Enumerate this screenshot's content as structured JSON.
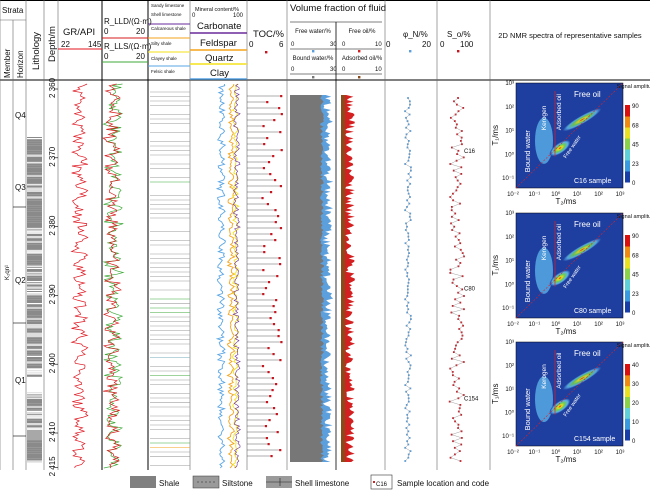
{
  "headers": {
    "strats": "Strata",
    "member": "Member",
    "horizon": "Horizon",
    "lithology": "Lithology",
    "depth": "Depth/m",
    "gr": {
      "label": "GR/API",
      "min": "22",
      "max": "145"
    },
    "rlld": {
      "label": "R_LLD/(Ω·m)",
      "min": "0",
      "max": "20"
    },
    "rlls": {
      "label": "R_LLS/(Ω·m)",
      "min": "0",
      "max": "20"
    },
    "lith_types": [
      "Sandy limestone",
      "Shell limestone",
      "Calcareous shale",
      "Silty shale",
      "Clayey shale",
      "Felsic shale"
    ],
    "mineral": {
      "label": "Mineral content/%",
      "min": "0",
      "max": "100",
      "items": [
        "Carbonate",
        "Feldspar",
        "Quartz",
        "Clay"
      ]
    },
    "toc": {
      "label": "TOC/%",
      "min": "0",
      "max": "6"
    },
    "fluid_title": "Volume fraction of fluid",
    "free_water": {
      "label": "Free water/%",
      "min": "0",
      "max": "30"
    },
    "bound_water": {
      "label": "Bound water/%",
      "min": "0",
      "max": "30"
    },
    "free_oil": {
      "label": "Free oil/%",
      "min": "0",
      "max": "10"
    },
    "adsorbed_oil": {
      "label": "Adsorbed oil/%",
      "min": "0",
      "max": "10"
    },
    "phi": {
      "label": "φ_N/%",
      "min": "0",
      "max": "20"
    },
    "so": {
      "label": "S_o/%",
      "min": "0",
      "max": "100"
    },
    "nmr_title": "2D NMR spectra of representative samples"
  },
  "strata": {
    "member": "K₂qn¹",
    "horizons": [
      "Q4",
      "Q3",
      "Q2",
      "Q1"
    ]
  },
  "colors": {
    "gr": "#e0141e",
    "rlld": "#d81b1b",
    "rlls": "#3faa3a",
    "carbonate": "#6a2a9a",
    "feldspar": "#f5a31a",
    "quartz": "#f3e21a",
    "clay": "#5aa6e6",
    "toc": "#c8141e",
    "free_water": "#5b9fdc",
    "bound_water": "#777777",
    "free_oil": "#d42020",
    "adsorbed_oil": "#8a4a1a",
    "shale": "#808080"
  },
  "chart_data": {
    "type": "well-log",
    "depth_axis": {
      "label": "Depth/m",
      "ticks": [
        "2 360",
        "2 370",
        "2 380",
        "2 390",
        "2 400",
        "2 410",
        "2 415"
      ],
      "range": [
        2359,
        2415
      ]
    },
    "samples": [
      {
        "code": "C16",
        "depth": 2369
      },
      {
        "code": "C80",
        "depth": 2389
      },
      {
        "code": "C154",
        "depth": 2405
      }
    ],
    "nmr_panels": [
      {
        "sample": "C16 sample",
        "x_label": "T₂/ms",
        "y_label": "T₁/ms",
        "x_ticks": [
          "10⁻²",
          "10⁻¹",
          "10⁰",
          "10¹",
          "10²",
          "10³"
        ],
        "y_ticks": [
          "10⁻¹",
          "10⁰",
          "10¹",
          "10²",
          "10³"
        ],
        "colorbar_label": "Signal amplitude",
        "colorbar_ticks": [
          "90",
          "68",
          "45",
          "23",
          "0"
        ],
        "regions": [
          "Kerogen",
          "Adsorbed oil",
          "Free oil",
          "Bound water",
          "Free water"
        ]
      },
      {
        "sample": "C80 sample",
        "x_label": "T₂/ms",
        "y_label": "T₁/ms",
        "x_ticks": [
          "10⁻²",
          "10⁻¹",
          "10⁰",
          "10¹",
          "10²",
          "10³"
        ],
        "y_ticks": [
          "10⁻¹",
          "10⁰",
          "10¹",
          "10²",
          "10³"
        ],
        "colorbar_label": "Signal amplitude",
        "colorbar_ticks": [
          "90",
          "68",
          "45",
          "23",
          "0"
        ],
        "regions": [
          "Kerogen",
          "Adsorbed oil",
          "Free oil",
          "Bound water",
          "Free water"
        ]
      },
      {
        "sample": "C154 sample",
        "x_label": "T₂/ms",
        "y_label": "T₁/ms",
        "x_ticks": [
          "10⁻²",
          "10⁻¹",
          "10⁰",
          "10¹",
          "10²",
          "10³"
        ],
        "y_ticks": [
          "10⁻¹",
          "10⁰",
          "10¹",
          "10²",
          "10³"
        ],
        "colorbar_label": "Signal amplitude",
        "colorbar_ticks": [
          "40",
          "30",
          "20",
          "10",
          "0"
        ],
        "regions": [
          "Kerogen",
          "Adsorbed oil",
          "Free oil",
          "Bound water",
          "Free water"
        ]
      }
    ]
  },
  "legend": {
    "shale": "Shale",
    "siltstone": "Siltstone",
    "shell_limestone": "Shell limestone",
    "sample_code": "C16",
    "sample": "Sample location and code"
  }
}
